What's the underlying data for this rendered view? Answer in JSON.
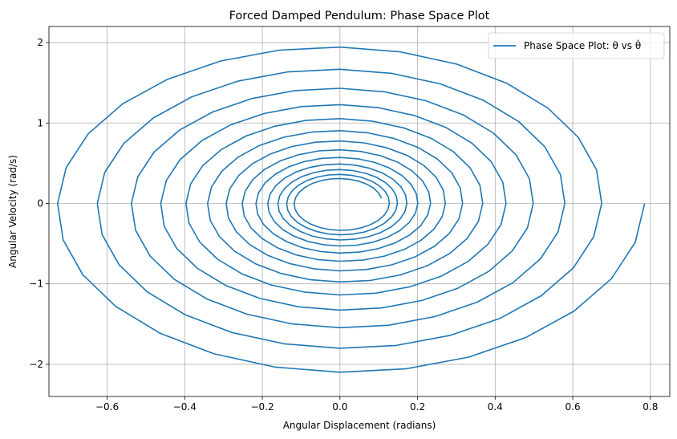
{
  "chart_data": {
    "type": "line",
    "title": "Forced Damped Pendulum: Phase Space Plot",
    "xlabel": "Angular Displacement (radians)",
    "ylabel": "Angular Velocity (rad/s)",
    "xlim": [
      -0.75,
      0.85
    ],
    "ylim": [
      -2.4,
      2.2
    ],
    "xticks": [
      -0.6,
      -0.4,
      -0.2,
      0.0,
      0.2,
      0.4,
      0.6,
      0.8
    ],
    "xtick_labels": [
      "−0.6",
      "−0.4",
      "−0.2",
      "0.0",
      "0.2",
      "0.4",
      "0.6",
      "0.8"
    ],
    "yticks": [
      -2,
      -1,
      0,
      1,
      2
    ],
    "ytick_labels": [
      "−2",
      "−1",
      "0",
      "1",
      "2"
    ],
    "grid": true,
    "legend_position": "top-right",
    "series": [
      {
        "name": "Phase Space Plot: θ vs θ̇",
        "color": "#1f77b4",
        "spiral": {
          "theta0": 0.785,
          "omega0": 0.0,
          "omega_peak_initial": 2.18,
          "omega_amplitude_ratio": 2.8,
          "omega_final_peak": 0.3,
          "theta_final_amplitude": 0.11,
          "cycles": 13,
          "points_per_cycle": 28
        }
      }
    ]
  }
}
